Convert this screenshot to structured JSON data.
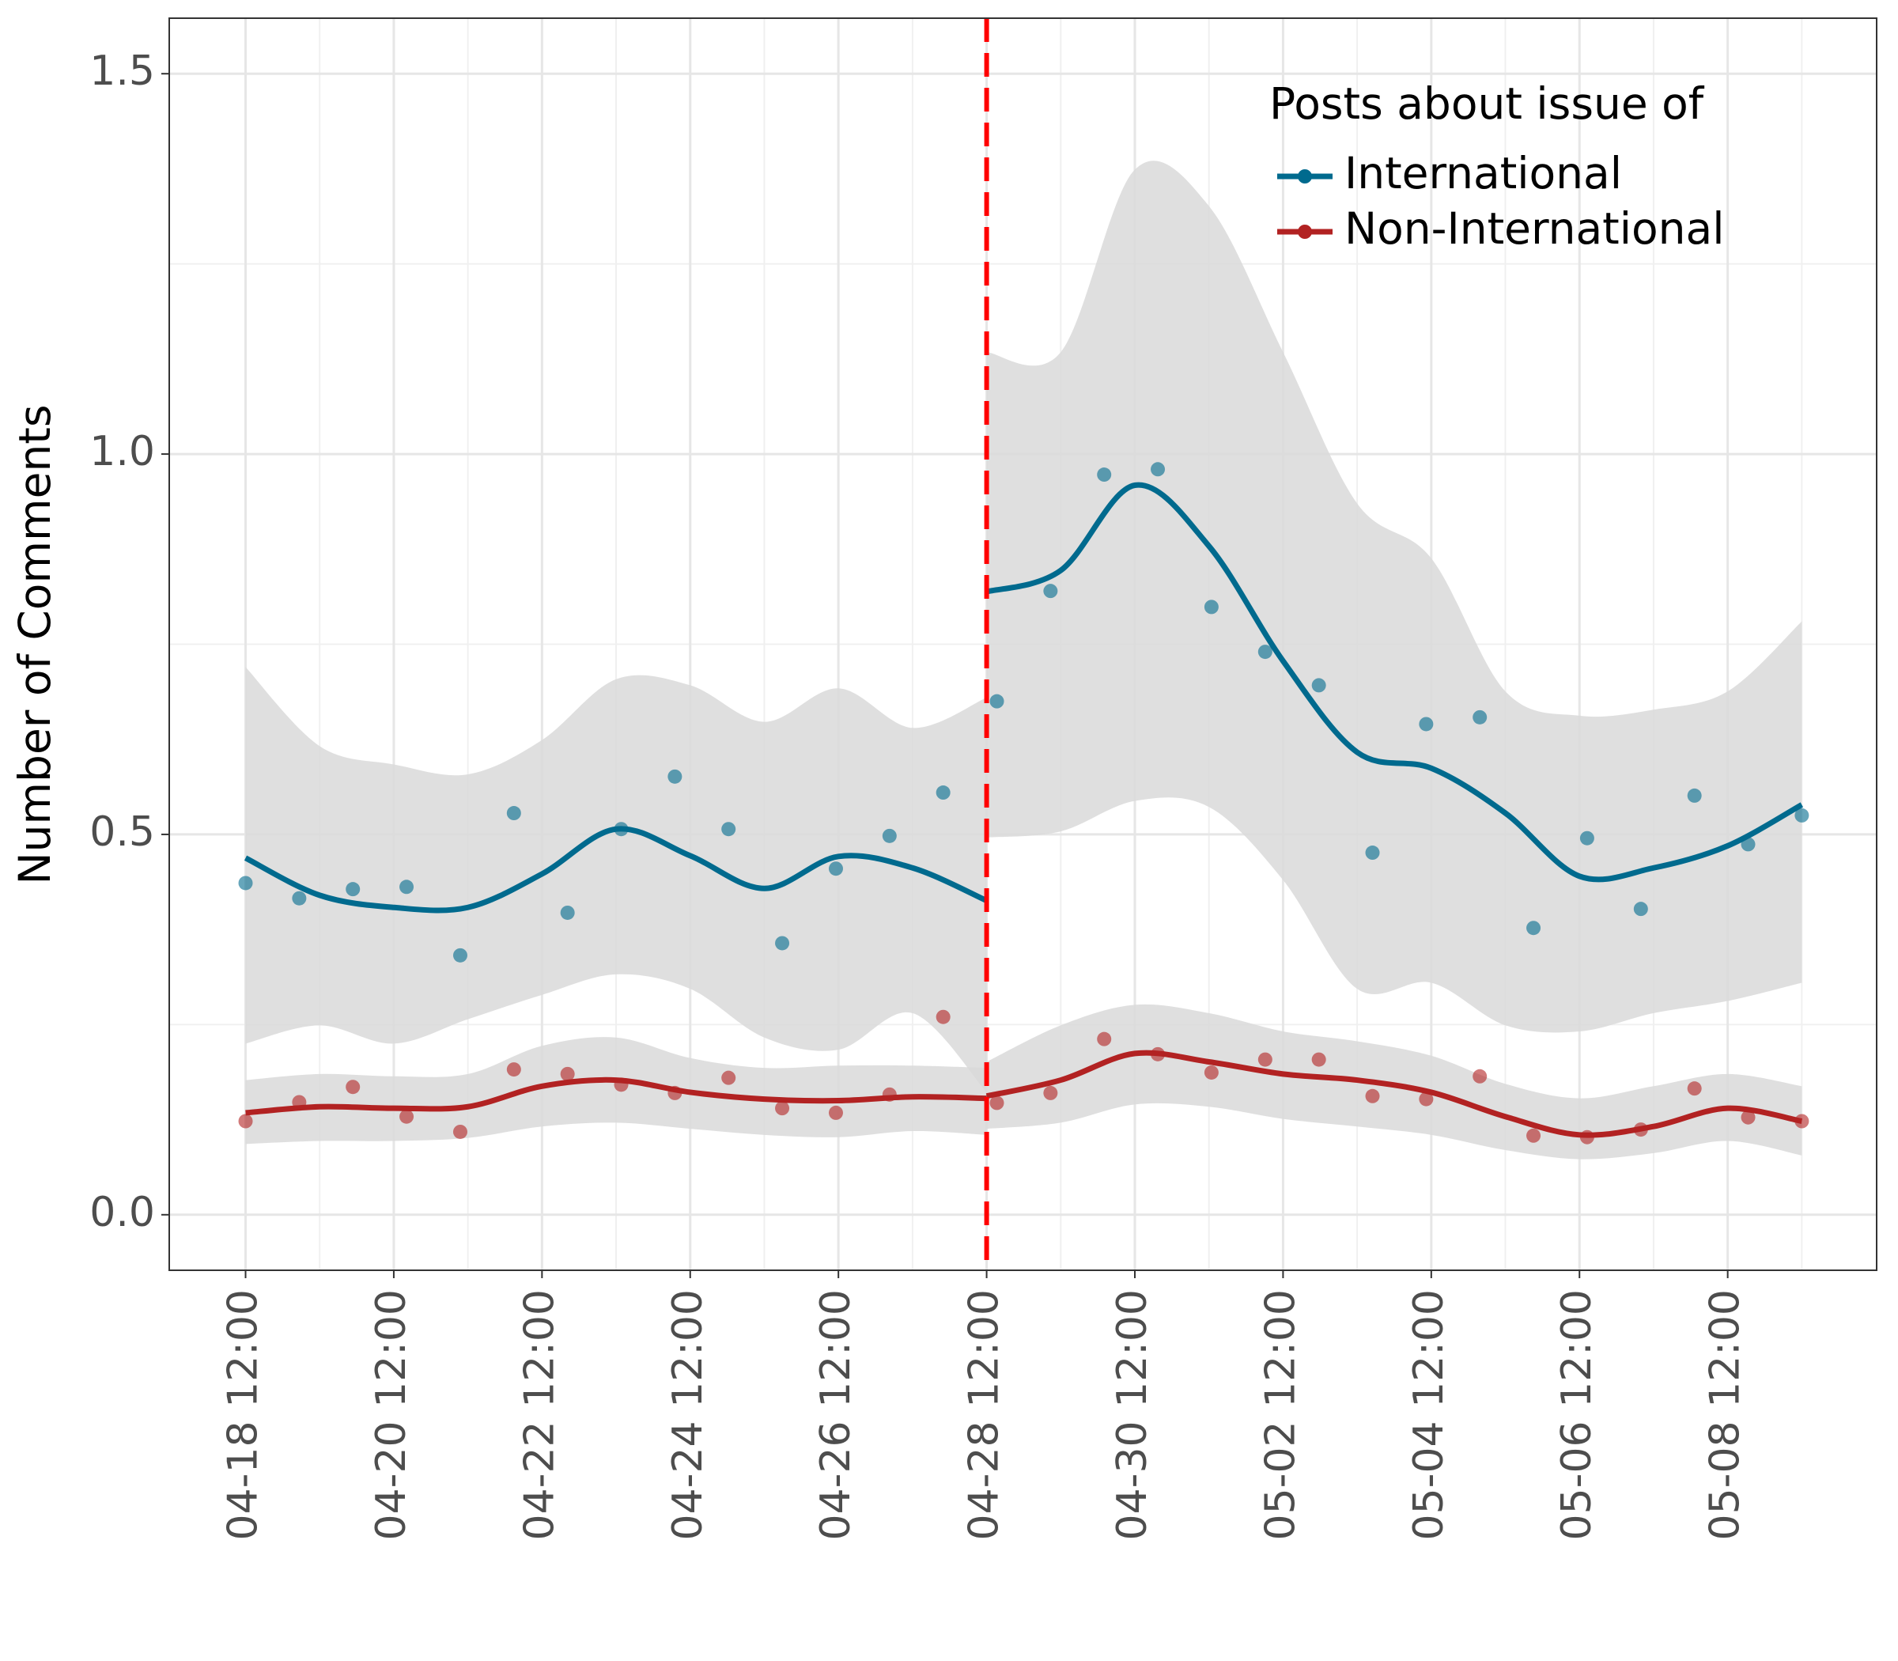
{
  "chart_data": {
    "type": "line",
    "y_label": "Number of Comments",
    "legend_title": "Posts about issue of",
    "legend": "top-right",
    "grid": true,
    "xlim": [
      -1.03,
      22.01
    ],
    "ylim": [
      -0.073,
      1.573
    ],
    "xticks": [
      {
        "value": 0,
        "label": "04-18 12:00"
      },
      {
        "value": 2,
        "label": "04-20 12:00"
      },
      {
        "value": 4,
        "label": "04-22 12:00"
      },
      {
        "value": 6,
        "label": "04-24 12:00"
      },
      {
        "value": 8,
        "label": "04-26 12:00"
      },
      {
        "value": 10,
        "label": "04-28 12:00"
      },
      {
        "value": 12,
        "label": "04-30 12:00"
      },
      {
        "value": 14,
        "label": "05-02 12:00"
      },
      {
        "value": 16,
        "label": "05-04 12:00"
      },
      {
        "value": 18,
        "label": "05-06 12:00"
      },
      {
        "value": 20,
        "label": "05-08 12:00"
      }
    ],
    "minor_xticks": [
      1,
      3,
      5,
      7,
      9,
      11,
      13,
      15,
      17,
      19,
      21
    ],
    "yticks": [
      {
        "value": 0,
        "label": "0.0"
      },
      0.5,
      {
        "value": 1,
        "label": "1.0"
      },
      1.5
    ],
    "minor_yticks": [
      0.25,
      0.75,
      1.25
    ],
    "vline": {
      "x": 10,
      "color": "#ff0000"
    },
    "band_color": "#d9d9d9",
    "x": [
      0,
      0.724,
      1.448,
      2.172,
      2.897,
      3.621,
      4.345,
      5.069,
      5.793,
      6.517,
      7.241,
      7.966,
      8.69,
      9.414,
      10.138,
      10.862,
      11.586,
      12.31,
      13.034,
      13.759,
      14.483,
      15.207,
      15.931,
      16.655,
      17.379,
      18.103,
      18.828,
      19.552,
      20.276,
      21.0
    ],
    "series": [
      {
        "name": "International",
        "color": "#006a8e",
        "values": [
          0.436,
          0.416,
          0.428,
          0.431,
          0.341,
          0.528,
          0.397,
          0.507,
          0.576,
          0.507,
          0.357,
          0.455,
          0.498,
          0.555,
          0.675,
          0.82,
          0.973,
          0.98,
          0.799,
          0.74,
          0.696,
          0.476,
          0.645,
          0.654,
          0.377,
          0.495,
          0.402,
          0.551,
          0.487,
          0.525
        ],
        "smooth": [
          {
            "x": [
              0,
              1,
              2,
              3,
              4,
              5,
              6,
              7,
              8,
              9,
              10
            ],
            "fit": [
              0.469,
              0.42,
              0.404,
              0.404,
              0.448,
              0.507,
              0.472,
              0.429,
              0.471,
              0.456,
              0.413
            ],
            "upper": [
              0.72,
              0.616,
              0.592,
              0.579,
              0.624,
              0.704,
              0.696,
              0.648,
              0.692,
              0.64,
              0.68
            ],
            "lower": [
              0.225,
              0.249,
              0.225,
              0.257,
              0.289,
              0.316,
              0.297,
              0.233,
              0.217,
              0.265,
              0.161
            ]
          },
          {
            "x": [
              10,
              11,
              12,
              13,
              14,
              15,
              16,
              17,
              18,
              19,
              20,
              21
            ],
            "fit": [
              0.819,
              0.847,
              0.959,
              0.879,
              0.728,
              0.608,
              0.587,
              0.528,
              0.445,
              0.456,
              0.485,
              0.539
            ],
            "upper": [
              1.134,
              1.134,
              1.374,
              1.326,
              1.134,
              0.935,
              0.863,
              0.688,
              0.656,
              0.664,
              0.688,
              0.78
            ],
            "lower": [
              0.496,
              0.504,
              0.544,
              0.536,
              0.44,
              0.297,
              0.305,
              0.249,
              0.241,
              0.265,
              0.281,
              0.305
            ]
          }
        ]
      },
      {
        "name": "Non-International",
        "color": "#b22222",
        "values": [
          0.123,
          0.148,
          0.168,
          0.129,
          0.109,
          0.191,
          0.185,
          0.171,
          0.16,
          0.18,
          0.14,
          0.134,
          0.158,
          0.26,
          0.147,
          0.16,
          0.231,
          0.211,
          0.187,
          0.204,
          0.204,
          0.156,
          0.152,
          0.182,
          0.104,
          0.102,
          0.112,
          0.166,
          0.128,
          0.123
        ],
        "smooth": [
          {
            "x": [
              0,
              1,
              2,
              3,
              4,
              5,
              6,
              7,
              8,
              9,
              10
            ],
            "fit": [
              0.134,
              0.142,
              0.14,
              0.142,
              0.169,
              0.177,
              0.161,
              0.152,
              0.15,
              0.155,
              0.153
            ],
            "upper": [
              0.177,
              0.185,
              0.182,
              0.185,
              0.222,
              0.233,
              0.206,
              0.193,
              0.196,
              0.196,
              0.193
            ],
            "lower": [
              0.093,
              0.097,
              0.097,
              0.101,
              0.116,
              0.121,
              0.113,
              0.105,
              0.102,
              0.11,
              0.105
            ]
          },
          {
            "x": [
              10,
              11,
              12,
              13,
              14,
              15,
              16,
              17,
              18,
              19,
              20,
              21
            ],
            "fit": [
              0.156,
              0.177,
              0.212,
              0.201,
              0.185,
              0.177,
              0.161,
              0.129,
              0.105,
              0.116,
              0.14,
              0.123
            ],
            "upper": [
              0.201,
              0.249,
              0.276,
              0.265,
              0.241,
              0.228,
              0.209,
              0.172,
              0.153,
              0.169,
              0.185,
              0.169
            ],
            "lower": [
              0.113,
              0.121,
              0.145,
              0.142,
              0.126,
              0.116,
              0.105,
              0.085,
              0.073,
              0.081,
              0.097,
              0.078
            ]
          }
        ]
      }
    ]
  }
}
